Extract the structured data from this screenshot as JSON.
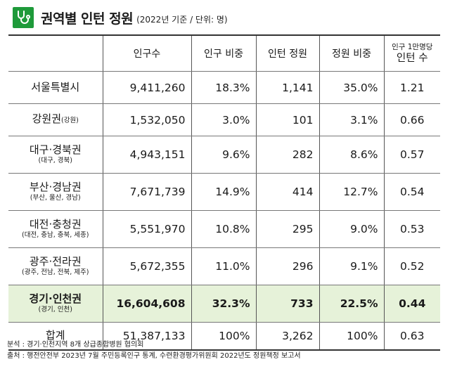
{
  "header": {
    "title": "권역별 인턴 정원",
    "subtitle": "(2022년 기준 / 단위: 명)"
  },
  "columns": {
    "region": "",
    "population": "인구수",
    "pop_share": "인구 비중",
    "intern_quota": "인턴 정원",
    "quota_share": "정원 비중",
    "per10k_line1": "인구 1만명당",
    "per10k_line2": "인턴 수"
  },
  "rows": [
    {
      "name": "서울특별시",
      "sub": "",
      "population": "9,411,260",
      "pop_share": "18.3%",
      "quota": "1,141",
      "quota_share": "35.0%",
      "per10k": "1.21"
    },
    {
      "name": "강원권",
      "sub": "(강원)",
      "population": "1,532,050",
      "pop_share": "3.0%",
      "quota": "101",
      "quota_share": "3.1%",
      "per10k": "0.66"
    },
    {
      "name": "대구·경북권",
      "sub": "(대구, 경북)",
      "population": "4,943,151",
      "pop_share": "9.6%",
      "quota": "282",
      "quota_share": "8.6%",
      "per10k": "0.57"
    },
    {
      "name": "부산·경남권",
      "sub": "(부산, 울산, 경남)",
      "population": "7,671,739",
      "pop_share": "14.9%",
      "quota": "414",
      "quota_share": "12.7%",
      "per10k": "0.54"
    },
    {
      "name": "대전·충청권",
      "sub": "(대전, 충남, 충북, 세종)",
      "population": "5,551,970",
      "pop_share": "10.8%",
      "quota": "295",
      "quota_share": "9.0%",
      "per10k": "0.53"
    },
    {
      "name": "광주·전라권",
      "sub": "(광주, 전남, 전북, 제주)",
      "population": "5,672,355",
      "pop_share": "11.0%",
      "quota": "296",
      "quota_share": "9.1%",
      "per10k": "0.52"
    },
    {
      "name": "경기·인천권",
      "sub": "(경기, 인천)",
      "population": "16,604,608",
      "pop_share": "32.3%",
      "quota": "733",
      "quota_share": "22.5%",
      "per10k": "0.44"
    },
    {
      "name": "합계",
      "sub": "",
      "population": "51,387,133",
      "pop_share": "100%",
      "quota": "3,262",
      "quota_share": "100%",
      "per10k": "0.63"
    }
  ],
  "footer": {
    "analysis": "분석 : 경기·인천지역 8개 상급종합병원 협의회",
    "source": "출처 : 행전안전부 2023년 7월 주민등록인구 통계, 수련환경평가위원회 2022년도 정원책정 보고서"
  },
  "colors": {
    "logo": "#1e9a3a",
    "highlight_row": "#e6f2d9"
  },
  "icons": {
    "logo": "stethoscope-icon"
  }
}
